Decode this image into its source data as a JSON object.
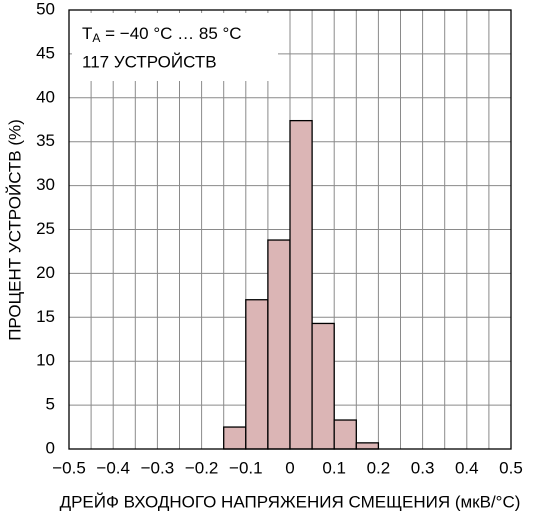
{
  "chart_data": {
    "type": "histogram",
    "xlabel": "ДРЕЙФ ВХОДНОГО НАПРЯЖЕНИЯ СМЕЩЕНИЯ (мкВ/°C)",
    "ylabel": "ПРОЦЕНТ УСТРОЙСТВ (%)",
    "annotation": {
      "line1": [
        "T",
        "A",
        " = −40 °C … 85 °C"
      ],
      "line2": "117 УСТРОЙСТВ"
    },
    "bins": [
      -0.15,
      -0.1,
      -0.05,
      0,
      0.05,
      0.1,
      0.15,
      0.2
    ],
    "values": [
      2.5,
      17,
      23.8,
      37.4,
      14.3,
      3.3,
      0.7
    ],
    "color": "#dbb5b5",
    "xlim": [
      -0.5,
      0.5
    ],
    "xticks": [
      {
        "value": -0.5,
        "label": "−0.5"
      },
      {
        "value": -0.4,
        "label": "−0.4"
      },
      {
        "value": -0.3,
        "label": "−0.3"
      },
      {
        "value": -0.2,
        "label": "−0.2"
      },
      {
        "value": -0.1,
        "label": "−0.1"
      },
      0,
      0.1,
      0.2,
      0.3,
      0.4,
      0.5
    ],
    "xminor": [
      -0.45,
      -0.35,
      -0.25,
      -0.15,
      -0.05,
      0.05,
      0.15,
      0.25,
      0.35,
      0.45
    ],
    "ylim": [
      0,
      50
    ],
    "yticks": [
      0,
      5,
      10,
      15,
      20,
      25,
      30,
      35,
      40,
      45,
      50
    ],
    "grid": true
  }
}
